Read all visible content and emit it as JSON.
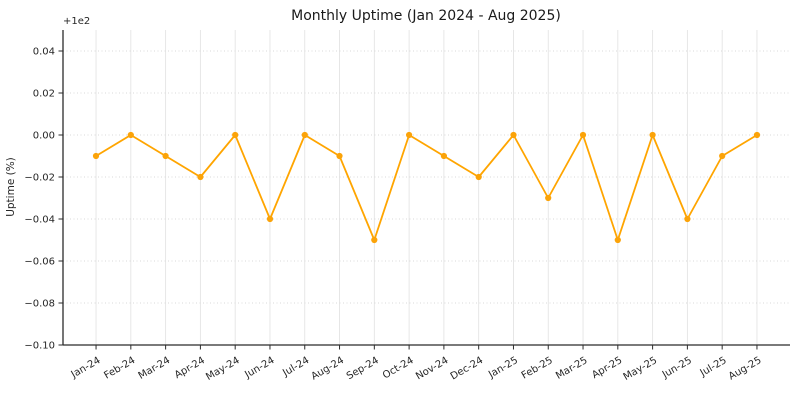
{
  "chart_data": {
    "type": "line",
    "title": "Monthly Uptime (Jan 2024 - Aug 2025)",
    "ylabel": "Uptime (%)",
    "xlabel": "",
    "y_offset_label": "+1e2",
    "y_offset_value": 100,
    "categories": [
      "Jan-24",
      "Feb-24",
      "Mar-24",
      "Apr-24",
      "May-24",
      "Jun-24",
      "Jul-24",
      "Aug-24",
      "Sep-24",
      "Oct-24",
      "Nov-24",
      "Dec-24",
      "Jan-25",
      "Feb-25",
      "Mar-25",
      "Apr-25",
      "May-25",
      "Jun-25",
      "Jul-25",
      "Aug-25"
    ],
    "values": [
      -0.01,
      0.0,
      -0.01,
      -0.02,
      0.0,
      -0.04,
      0.0,
      -0.01,
      -0.05,
      0.0,
      -0.01,
      -0.02,
      0.0,
      -0.03,
      0.0,
      -0.05,
      0.0,
      -0.04,
      -0.01,
      0.0
    ],
    "ylim": [
      -0.1,
      0.05
    ],
    "yticks": [
      0.04,
      0.02,
      0.0,
      -0.02,
      -0.04,
      -0.06,
      -0.08,
      -0.1
    ],
    "ytick_labels": [
      "0.04",
      "0.02",
      "0.00",
      "−0.02",
      "−0.04",
      "−0.06",
      "−0.08",
      "−0.10"
    ],
    "grid": true,
    "legend": false,
    "marker": "circle"
  },
  "colors": {
    "line": "#FFA500",
    "marker": "#FBA309",
    "grid_vertical": "#e4e4e4",
    "grid_horizontal": "#d9d9d9",
    "spine": "#2b2b2b",
    "tick_text": "#262626",
    "title_text": "#1a1a1a",
    "background": "#ffffff"
  }
}
